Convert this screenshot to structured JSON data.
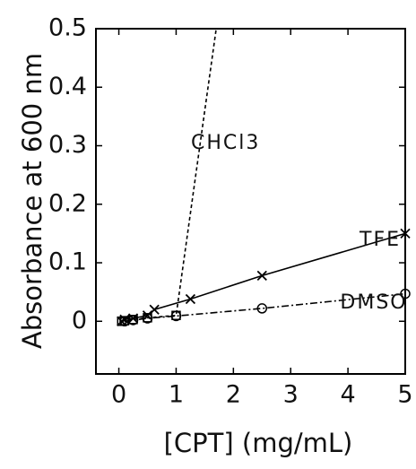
{
  "chart_data": {
    "type": "line",
    "xlabel": "[CPT] (mg/mL)",
    "ylabel": "Absorbance at 600 nm",
    "xlim": [
      -0.4,
      5
    ],
    "ylim": [
      -0.09,
      0.5
    ],
    "xticks": [
      0,
      1,
      2,
      3,
      4,
      5
    ],
    "yticks": [
      0,
      0.1,
      0.2,
      0.3,
      0.4,
      0.5
    ],
    "series": [
      {
        "name": "CHCl3",
        "color": "#000000",
        "dash": "4,3",
        "marker": "square",
        "x": [
          0.05,
          0.1,
          0.25,
          0.5,
          1,
          1.7
        ],
        "values": [
          0,
          0.001,
          0.003,
          0.006,
          0.01,
          0.5
        ]
      },
      {
        "name": "TFE",
        "color": "#000000",
        "dash": "none",
        "marker": "cross",
        "x": [
          0.05,
          0.1,
          0.25,
          0.5,
          0.62,
          1.25,
          2.5,
          5
        ],
        "values": [
          0,
          0.003,
          0.005,
          0.01,
          0.02,
          0.038,
          0.078,
          0.15
        ]
      },
      {
        "name": "DMSO",
        "color": "#000000",
        "dash": "8,3,2,3",
        "marker": "circle",
        "x": [
          0.1,
          0.25,
          0.5,
          1,
          2.5,
          5
        ],
        "values": [
          0,
          0.002,
          0.005,
          0.009,
          0.022,
          0.047
        ]
      }
    ]
  }
}
